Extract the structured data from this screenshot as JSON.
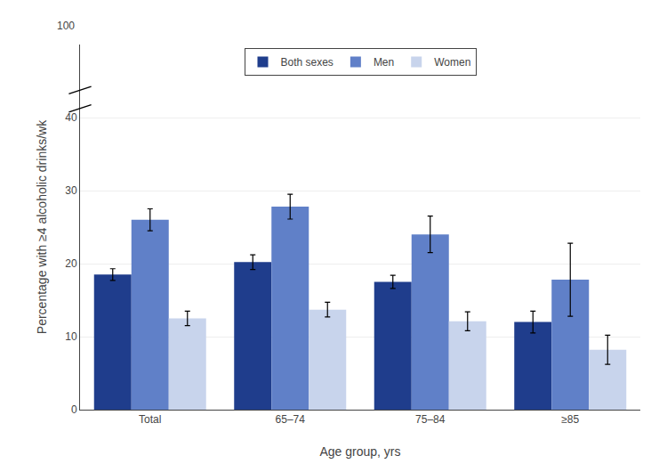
{
  "chart_data": {
    "type": "bar",
    "categories": [
      "Total",
      "65–74",
      "75–84",
      "≥85"
    ],
    "series": [
      {
        "name": "Both sexes",
        "color": "#1f3d8c",
        "values": [
          18.5,
          20.2,
          17.5,
          12.0
        ],
        "errors": [
          0.8,
          1.0,
          0.9,
          1.5
        ]
      },
      {
        "name": "Men",
        "color": "#6080c8",
        "values": [
          26.0,
          27.8,
          24.0,
          17.8
        ],
        "errors": [
          1.5,
          1.7,
          2.5,
          5.0
        ]
      },
      {
        "name": "Women",
        "color": "#c8d4ec",
        "values": [
          12.5,
          13.7,
          12.1,
          8.2
        ],
        "errors": [
          1.0,
          1.0,
          1.3,
          2.0
        ]
      }
    ],
    "ylabel": "Percentage with ≥4 alcoholic drinks/wk",
    "xlabel": "Age group, yrs",
    "ylim": [
      0,
      50
    ],
    "yticks": [
      0,
      10,
      20,
      30,
      40
    ],
    "annotations": [
      "100"
    ],
    "grid": true,
    "legend": "upper center"
  }
}
